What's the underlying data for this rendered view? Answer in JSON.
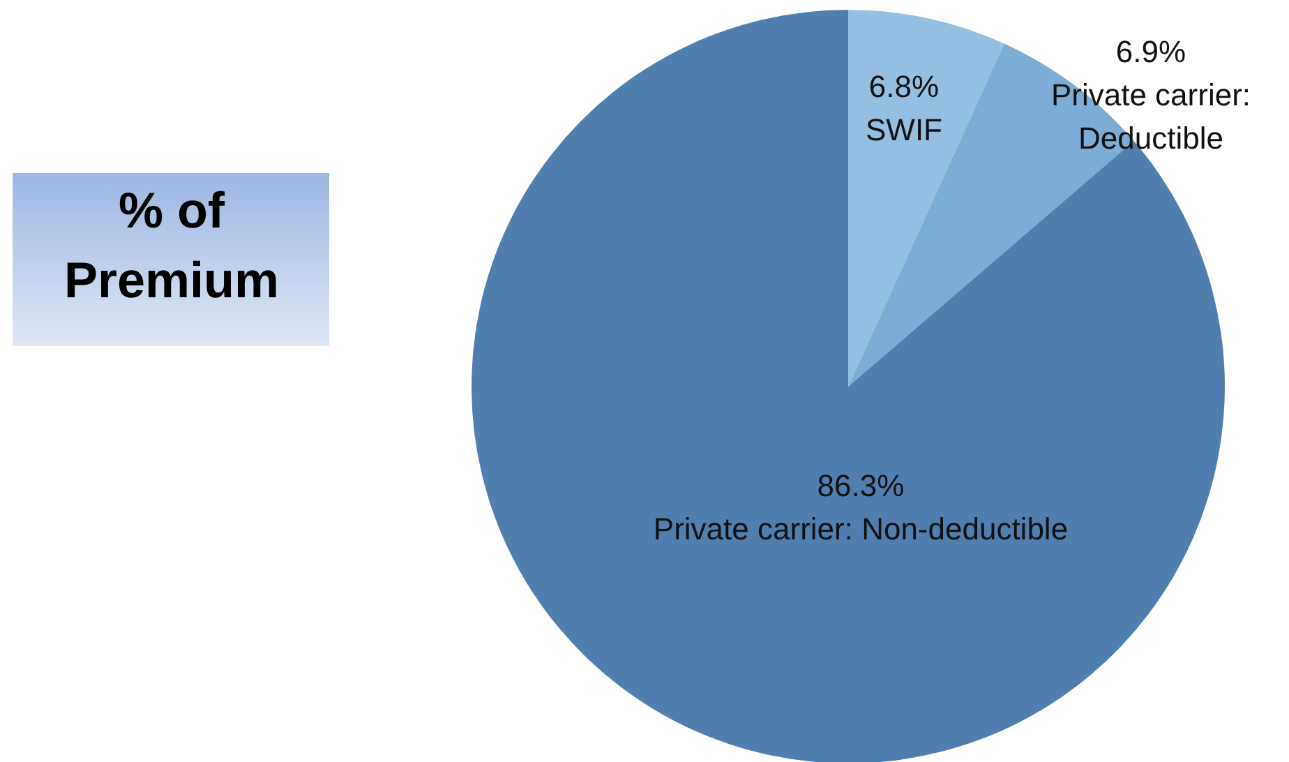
{
  "chart_data": {
    "type": "pie",
    "title": "% of Premium",
    "categories": [
      "SWIF",
      "Private carrier: Deductible",
      "Private carrier: Non-deductible"
    ],
    "values": [
      6.8,
      6.9,
      86.3
    ],
    "colors": [
      "#93c0e0",
      "#7cadd6",
      "#4f7fae"
    ],
    "value_labels": [
      "6.8%",
      "6.9%",
      "86.3%"
    ]
  }
}
